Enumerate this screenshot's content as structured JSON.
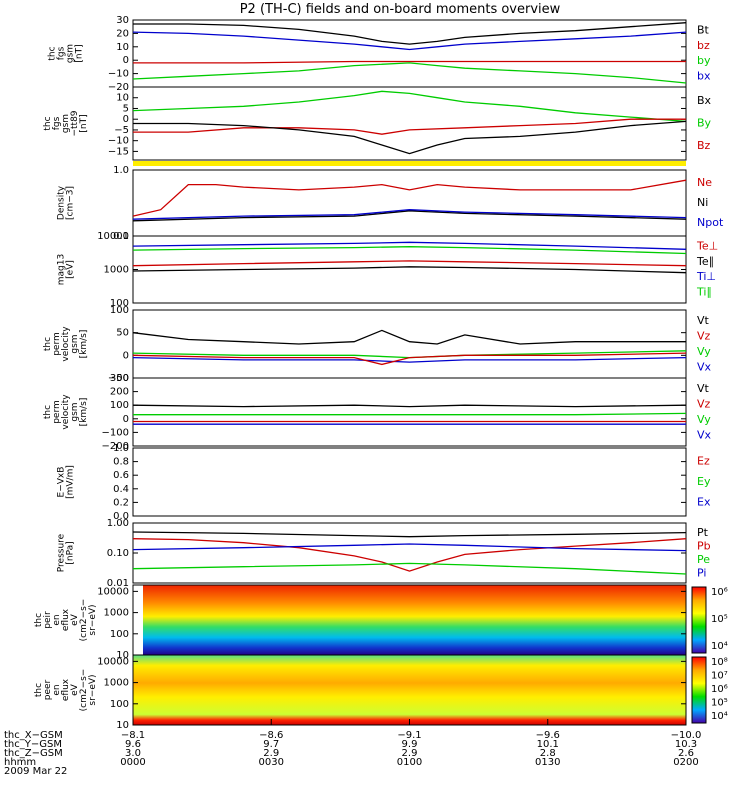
{
  "title": "P2 (TH-C) fields and on-board moments overview",
  "colors": {
    "black": "#000000",
    "red": "#cc0000",
    "green": "#00cc00",
    "blue": "#0000cc",
    "yellow": "#ffee00",
    "bright_red": "#ff0000",
    "purple": "#800080"
  },
  "chart_data": [
    {
      "type": "line",
      "ylabel_lines": [
        "thc",
        "fgs",
        "gsm",
        "[nT]"
      ],
      "ylim": [
        -20,
        30
      ],
      "yticks": [
        "30",
        "20",
        "10",
        "0",
        "−10",
        "−20"
      ],
      "legend": [
        {
          "label": "Bt",
          "color": "#000000"
        },
        {
          "label": "bz",
          "color": "#cc0000"
        },
        {
          "label": "by",
          "color": "#00cc00"
        },
        {
          "label": "bx",
          "color": "#0000cc"
        }
      ],
      "series": [
        {
          "name": "Bt",
          "color": "#000000",
          "x": [
            0,
            0.1,
            0.2,
            0.3,
            0.4,
            0.45,
            0.5,
            0.55,
            0.6,
            0.7,
            0.8,
            0.9,
            1.0
          ],
          "y": [
            27,
            27,
            26,
            23,
            18,
            14,
            12,
            14,
            17,
            20,
            22,
            25,
            28
          ]
        },
        {
          "name": "bz",
          "color": "#0000cc",
          "x": [
            0,
            0.1,
            0.2,
            0.3,
            0.4,
            0.45,
            0.5,
            0.55,
            0.6,
            0.7,
            0.8,
            0.9,
            1.0
          ],
          "y": [
            21,
            20,
            18,
            15,
            12,
            10,
            8,
            10,
            12,
            14,
            16,
            18,
            21
          ]
        },
        {
          "name": "by",
          "color": "#cc0000",
          "x": [
            0,
            0.2,
            0.4,
            0.5,
            0.6,
            0.8,
            1.0
          ],
          "y": [
            -2,
            -2,
            -1,
            -1,
            -1,
            -1,
            -1
          ]
        },
        {
          "name": "bx",
          "color": "#00cc00",
          "x": [
            0,
            0.1,
            0.2,
            0.3,
            0.4,
            0.5,
            0.55,
            0.6,
            0.7,
            0.8,
            0.9,
            1.0
          ],
          "y": [
            -14,
            -12,
            -10,
            -8,
            -4,
            -2,
            -4,
            -6,
            -8,
            -10,
            -13,
            -17
          ]
        }
      ]
    },
    {
      "type": "line",
      "ylabel_lines": [
        "thc",
        "fgs",
        "gsm",
        "−tt89",
        "[nT]"
      ],
      "ylim": [
        -19,
        15
      ],
      "yticks": [
        "10",
        "5",
        "0",
        "−5",
        "−10",
        "−15"
      ],
      "legend": [
        {
          "label": "Bx",
          "color": "#000000"
        },
        {
          "label": "By",
          "color": "#00cc00"
        },
        {
          "label": "Bz",
          "color": "#cc0000"
        }
      ],
      "series": [
        {
          "name": "By",
          "color": "#00cc00",
          "x": [
            0,
            0.1,
            0.2,
            0.3,
            0.4,
            0.45,
            0.5,
            0.55,
            0.6,
            0.7,
            0.8,
            0.9,
            1.0
          ],
          "y": [
            4,
            5,
            6,
            8,
            11,
            13,
            12,
            10,
            8,
            6,
            3,
            1,
            -1
          ]
        },
        {
          "name": "Bz",
          "color": "#cc0000",
          "x": [
            0,
            0.1,
            0.2,
            0.3,
            0.4,
            0.45,
            0.5,
            0.6,
            0.7,
            0.8,
            0.9,
            1.0
          ],
          "y": [
            -6,
            -6,
            -4,
            -4,
            -5,
            -7,
            -5,
            -4,
            -3,
            -2,
            0,
            0
          ]
        },
        {
          "name": "Bx",
          "color": "#000000",
          "x": [
            0,
            0.1,
            0.2,
            0.3,
            0.4,
            0.45,
            0.5,
            0.55,
            0.6,
            0.7,
            0.8,
            0.9,
            1.0
          ],
          "y": [
            -2,
            -2,
            -3,
            -5,
            -8,
            -12,
            -16,
            -12,
            -9,
            -8,
            -6,
            -3,
            -1
          ]
        }
      ]
    },
    {
      "type": "line",
      "ylabel_lines": [
        "Density",
        "[cm−3]"
      ],
      "ylim": [
        0.1,
        1.0
      ],
      "log": true,
      "yticks": [
        "1.0",
        "0.1"
      ],
      "legend": [
        {
          "label": "Ne",
          "color": "#cc0000"
        },
        {
          "label": "Ni",
          "color": "#000000"
        },
        {
          "label": "Npot",
          "color": "#0000cc"
        }
      ],
      "series": [
        {
          "name": "Ne",
          "color": "#cc0000",
          "x": [
            0,
            0.05,
            0.1,
            0.15,
            0.2,
            0.3,
            0.4,
            0.45,
            0.5,
            0.55,
            0.6,
            0.7,
            0.8,
            0.9,
            1.0
          ],
          "y": [
            0.2,
            0.25,
            0.6,
            0.6,
            0.55,
            0.5,
            0.55,
            0.6,
            0.5,
            0.6,
            0.55,
            0.5,
            0.5,
            0.5,
            0.7
          ]
        },
        {
          "name": "Ni",
          "color": "#000000",
          "x": [
            0,
            0.2,
            0.4,
            0.5,
            0.6,
            0.8,
            1.0
          ],
          "y": [
            0.17,
            0.19,
            0.2,
            0.24,
            0.22,
            0.2,
            0.18
          ]
        },
        {
          "name": "Npot",
          "color": "#0000cc",
          "x": [
            0,
            0.2,
            0.4,
            0.5,
            0.6,
            0.8,
            1.0
          ],
          "y": [
            0.18,
            0.2,
            0.21,
            0.25,
            0.23,
            0.21,
            0.19
          ]
        }
      ]
    },
    {
      "type": "line",
      "ylabel_lines": [
        "mag13",
        "[eV]"
      ],
      "ylim": [
        100,
        10000
      ],
      "log": true,
      "yticks": [
        "10000",
        "1000",
        "100"
      ],
      "legend": [
        {
          "label": "Te⊥",
          "color": "#cc0000"
        },
        {
          "label": "Te∥",
          "color": "#000000"
        },
        {
          "label": "Ti⊥",
          "color": "#0000cc"
        },
        {
          "label": "Ti∥",
          "color": "#00cc00"
        }
      ],
      "series": [
        {
          "name": "Ti⊥",
          "color": "#0000cc",
          "x": [
            0,
            0.2,
            0.4,
            0.5,
            0.6,
            0.8,
            1.0
          ],
          "y": [
            5000,
            5500,
            6000,
            6500,
            6000,
            5000,
            4000
          ]
        },
        {
          "name": "Ti∥",
          "color": "#00cc00",
          "x": [
            0,
            0.2,
            0.4,
            0.5,
            0.6,
            0.8,
            1.0
          ],
          "y": [
            3800,
            4200,
            4500,
            4800,
            4500,
            3800,
            3000
          ]
        },
        {
          "name": "Te⊥",
          "color": "#cc0000",
          "x": [
            0,
            0.2,
            0.4,
            0.5,
            0.6,
            0.8,
            1.0
          ],
          "y": [
            1300,
            1500,
            1700,
            1800,
            1700,
            1500,
            1300
          ]
        },
        {
          "name": "Te∥",
          "color": "#000000",
          "x": [
            0,
            0.2,
            0.4,
            0.5,
            0.6,
            0.8,
            1.0
          ],
          "y": [
            900,
            1000,
            1100,
            1200,
            1150,
            1000,
            800
          ]
        }
      ]
    },
    {
      "type": "line",
      "ylabel_lines": [
        "thc",
        "perm",
        "velocity",
        "gsm",
        "[km/s]"
      ],
      "ylim": [
        -50,
        100
      ],
      "yticks": [
        "100",
        "50",
        "0",
        "−50"
      ],
      "legend": [
        {
          "label": "Vt",
          "color": "#000000"
        },
        {
          "label": "Vz",
          "color": "#cc0000"
        },
        {
          "label": "Vy",
          "color": "#00cc00"
        },
        {
          "label": "Vx",
          "color": "#0000cc"
        }
      ],
      "series": [
        {
          "name": "Vt",
          "color": "#000000",
          "x": [
            0,
            0.1,
            0.2,
            0.3,
            0.4,
            0.45,
            0.5,
            0.55,
            0.6,
            0.7,
            0.8,
            0.9,
            1.0
          ],
          "y": [
            50,
            35,
            30,
            25,
            30,
            55,
            30,
            25,
            45,
            25,
            30,
            30,
            30
          ]
        },
        {
          "name": "Vy",
          "color": "#00cc00",
          "x": [
            0,
            0.2,
            0.4,
            0.5,
            0.6,
            0.8,
            1.0
          ],
          "y": [
            5,
            0,
            0,
            -5,
            0,
            5,
            10
          ]
        },
        {
          "name": "Vx",
          "color": "#0000cc",
          "x": [
            0,
            0.2,
            0.4,
            0.5,
            0.6,
            0.8,
            1.0
          ],
          "y": [
            -5,
            -10,
            -10,
            -15,
            -10,
            -10,
            -5
          ]
        },
        {
          "name": "Vz",
          "color": "#cc0000",
          "x": [
            0,
            0.2,
            0.4,
            0.45,
            0.5,
            0.6,
            0.8,
            1.0
          ],
          "y": [
            0,
            -5,
            -5,
            -20,
            -5,
            0,
            0,
            5
          ]
        }
      ]
    },
    {
      "type": "line",
      "ylabel_lines": [
        "thc",
        "perm",
        "velocity",
        "gsm",
        "[km/s]"
      ],
      "ylim": [
        -200,
        300
      ],
      "yticks": [
        "300",
        "200",
        "100",
        "0",
        "−100",
        "−200"
      ],
      "legend": [
        {
          "label": "Vt",
          "color": "#000000"
        },
        {
          "label": "Vz",
          "color": "#cc0000"
        },
        {
          "label": "Vy",
          "color": "#00cc00"
        },
        {
          "label": "Vx",
          "color": "#0000cc"
        }
      ],
      "series": [
        {
          "name": "Vt",
          "color": "#000000",
          "x": [
            0,
            0.2,
            0.4,
            0.5,
            0.6,
            0.8,
            1.0
          ],
          "y": [
            100,
            90,
            100,
            90,
            100,
            90,
            100
          ]
        },
        {
          "name": "Vy",
          "color": "#00cc00",
          "x": [
            0,
            0.2,
            0.4,
            0.5,
            0.6,
            0.8,
            1.0
          ],
          "y": [
            30,
            30,
            30,
            30,
            30,
            30,
            40
          ]
        },
        {
          "name": "Vx",
          "color": "#0000cc",
          "x": [
            0,
            0.2,
            0.4,
            0.5,
            0.6,
            0.8,
            1.0
          ],
          "y": [
            -40,
            -40,
            -40,
            -40,
            -40,
            -40,
            -40
          ]
        },
        {
          "name": "Vz",
          "color": "#cc0000",
          "x": [
            0,
            0.2,
            0.4,
            0.5,
            0.6,
            0.8,
            1.0
          ],
          "y": [
            -20,
            -20,
            -20,
            -20,
            -20,
            -20,
            -20
          ]
        }
      ]
    },
    {
      "type": "line",
      "ylabel_lines": [
        "E−VxB",
        "[mV/m]"
      ],
      "ylim": [
        0,
        1.0
      ],
      "yticks": [
        "1.0",
        "0.8",
        "0.6",
        "0.4",
        "0.2",
        "0.0"
      ],
      "legend": [
        {
          "label": "Ez",
          "color": "#cc0000"
        },
        {
          "label": "Ey",
          "color": "#00cc00"
        },
        {
          "label": "Ex",
          "color": "#0000cc"
        }
      ],
      "series": []
    },
    {
      "type": "line",
      "ylabel_lines": [
        "Pressure",
        "[nPa]"
      ],
      "ylim": [
        0.01,
        1.0
      ],
      "log": true,
      "yticks": [
        "1.00",
        "0.10",
        "0.01"
      ],
      "legend": [
        {
          "label": "Pt",
          "color": "#000000"
        },
        {
          "label": "Pb",
          "color": "#cc0000"
        },
        {
          "label": "Pe",
          "color": "#00cc00"
        },
        {
          "label": "Pi",
          "color": "#0000cc"
        }
      ],
      "series": [
        {
          "name": "Pt",
          "color": "#000000",
          "x": [
            0,
            0.2,
            0.4,
            0.5,
            0.6,
            0.8,
            1.0
          ],
          "y": [
            0.5,
            0.45,
            0.38,
            0.35,
            0.38,
            0.42,
            0.48
          ]
        },
        {
          "name": "Pb",
          "color": "#cc0000",
          "x": [
            0,
            0.1,
            0.2,
            0.3,
            0.4,
            0.45,
            0.5,
            0.55,
            0.6,
            0.7,
            0.8,
            0.9,
            1.0
          ],
          "y": [
            0.3,
            0.28,
            0.22,
            0.15,
            0.08,
            0.05,
            0.025,
            0.05,
            0.09,
            0.13,
            0.17,
            0.22,
            0.3
          ]
        },
        {
          "name": "Pi",
          "color": "#0000cc",
          "x": [
            0,
            0.2,
            0.4,
            0.5,
            0.6,
            0.8,
            1.0
          ],
          "y": [
            0.13,
            0.15,
            0.18,
            0.2,
            0.18,
            0.14,
            0.12
          ]
        },
        {
          "name": "Pe",
          "color": "#00cc00",
          "x": [
            0,
            0.2,
            0.4,
            0.5,
            0.6,
            0.8,
            1.0
          ],
          "y": [
            0.03,
            0.035,
            0.04,
            0.045,
            0.04,
            0.03,
            0.02
          ]
        }
      ]
    },
    {
      "type": "heatmap",
      "ylabel_lines": [
        "thc",
        "peir",
        "en",
        "eflux",
        "eV",
        "(cm2−s−",
        "sr−eV)"
      ],
      "ylim": [
        10,
        20000
      ],
      "log": true,
      "yticks": [
        "10000",
        "1000",
        "100",
        "10"
      ],
      "colorbar_labels": [
        "10⁶",
        "10⁵",
        "10⁴"
      ]
    },
    {
      "type": "heatmap",
      "ylabel_lines": [
        "thc",
        "peer",
        "en",
        "eflux",
        "eV",
        "(cm2−s−",
        "sr−eV)"
      ],
      "ylim": [
        10,
        20000
      ],
      "log": true,
      "yticks": [
        "10000",
        "1000",
        "100",
        "10"
      ],
      "colorbar_labels": [
        "10⁸",
        "10⁷",
        "10⁶",
        "10⁵",
        "10⁴"
      ]
    }
  ],
  "xaxis": {
    "row_labels": [
      "thc_X−GSM",
      "thc_Y−GSM",
      "thc_Z−GSM",
      "hhmm",
      "2009 Mar 22"
    ],
    "columns": [
      {
        "values": [
          "−8.1",
          "9.6",
          "3.0",
          "0000"
        ]
      },
      {
        "values": [
          "−8.6",
          "9.7",
          "2.9",
          "0030"
        ]
      },
      {
        "values": [
          "−9.1",
          "9.9",
          "2.9",
          "0100"
        ]
      },
      {
        "values": [
          "−9.6",
          "10.1",
          "2.8",
          "0130"
        ]
      },
      {
        "values": [
          "−10.0",
          "10.3",
          "2.6",
          "0200"
        ]
      }
    ]
  }
}
